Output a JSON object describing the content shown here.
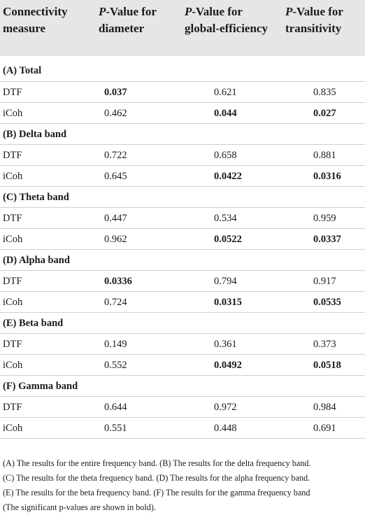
{
  "header": {
    "col0": [
      "Connectivity",
      "measure"
    ],
    "col1": {
      "pv": "P",
      "rest1": "-Value for",
      "line2": "diameter"
    },
    "col2": {
      "pv": "P",
      "rest1": "-Value for",
      "line2": "global-efficiency"
    },
    "col3": {
      "pv": "P",
      "rest1": "-Value for",
      "line2": "transitivity"
    }
  },
  "rows": [
    {
      "kind": "section",
      "label": "(A) Total"
    },
    {
      "kind": "data",
      "label": "DTF",
      "vals": [
        "0.037",
        "0.621",
        "0.835"
      ],
      "bold": [
        true,
        false,
        false
      ]
    },
    {
      "kind": "data",
      "label": "iCoh",
      "vals": [
        "0.462",
        "0.044",
        "0.027"
      ],
      "bold": [
        false,
        true,
        true
      ]
    },
    {
      "kind": "section",
      "label": "(B) Delta band"
    },
    {
      "kind": "data",
      "label": "DTF",
      "vals": [
        "0.722",
        "0.658",
        "0.881"
      ],
      "bold": [
        false,
        false,
        false
      ]
    },
    {
      "kind": "data",
      "label": "iCoh",
      "vals": [
        "0.645",
        "0.0422",
        "0.0316"
      ],
      "bold": [
        false,
        true,
        true
      ]
    },
    {
      "kind": "section",
      "label": "(C) Theta band"
    },
    {
      "kind": "data",
      "label": "DTF",
      "vals": [
        "0.447",
        "0.534",
        "0.959"
      ],
      "bold": [
        false,
        false,
        false
      ]
    },
    {
      "kind": "data",
      "label": "iCoh",
      "vals": [
        "0.962",
        "0.0522",
        "0.0337"
      ],
      "bold": [
        false,
        true,
        true
      ]
    },
    {
      "kind": "section",
      "label": "(D) Alpha band"
    },
    {
      "kind": "data",
      "label": "DTF",
      "vals": [
        "0.0336",
        "0.794",
        "0.917"
      ],
      "bold": [
        true,
        false,
        false
      ]
    },
    {
      "kind": "data",
      "label": "iCoh",
      "vals": [
        "0.724",
        "0.0315",
        "0.0535"
      ],
      "bold": [
        false,
        true,
        true
      ]
    },
    {
      "kind": "section",
      "label": "(E) Beta band"
    },
    {
      "kind": "data",
      "label": "DTF",
      "vals": [
        "0.149",
        "0.361",
        "0.373"
      ],
      "bold": [
        false,
        false,
        false
      ]
    },
    {
      "kind": "data",
      "label": "iCoh",
      "vals": [
        "0.552",
        "0.0492",
        "0.0518"
      ],
      "bold": [
        false,
        true,
        true
      ]
    },
    {
      "kind": "section",
      "label": "(F) Gamma band"
    },
    {
      "kind": "data",
      "label": "DTF",
      "vals": [
        "0.644",
        "0.972",
        "0.984"
      ],
      "bold": [
        false,
        false,
        false
      ]
    },
    {
      "kind": "data",
      "label": "iCoh",
      "vals": [
        "0.551",
        "0.448",
        "0.691"
      ],
      "bold": [
        false,
        false,
        false
      ]
    }
  ],
  "footnote": [
    "(A) The results for the entire frequency band. (B) The results for the delta frequency band.",
    "(C) The results for the theta frequency band. (D) The results for the alpha frequency band.",
    "(E) The results for the beta frequency band. (F) The results for the gamma frequency band",
    "(The significant p-values are shown in bold)."
  ]
}
